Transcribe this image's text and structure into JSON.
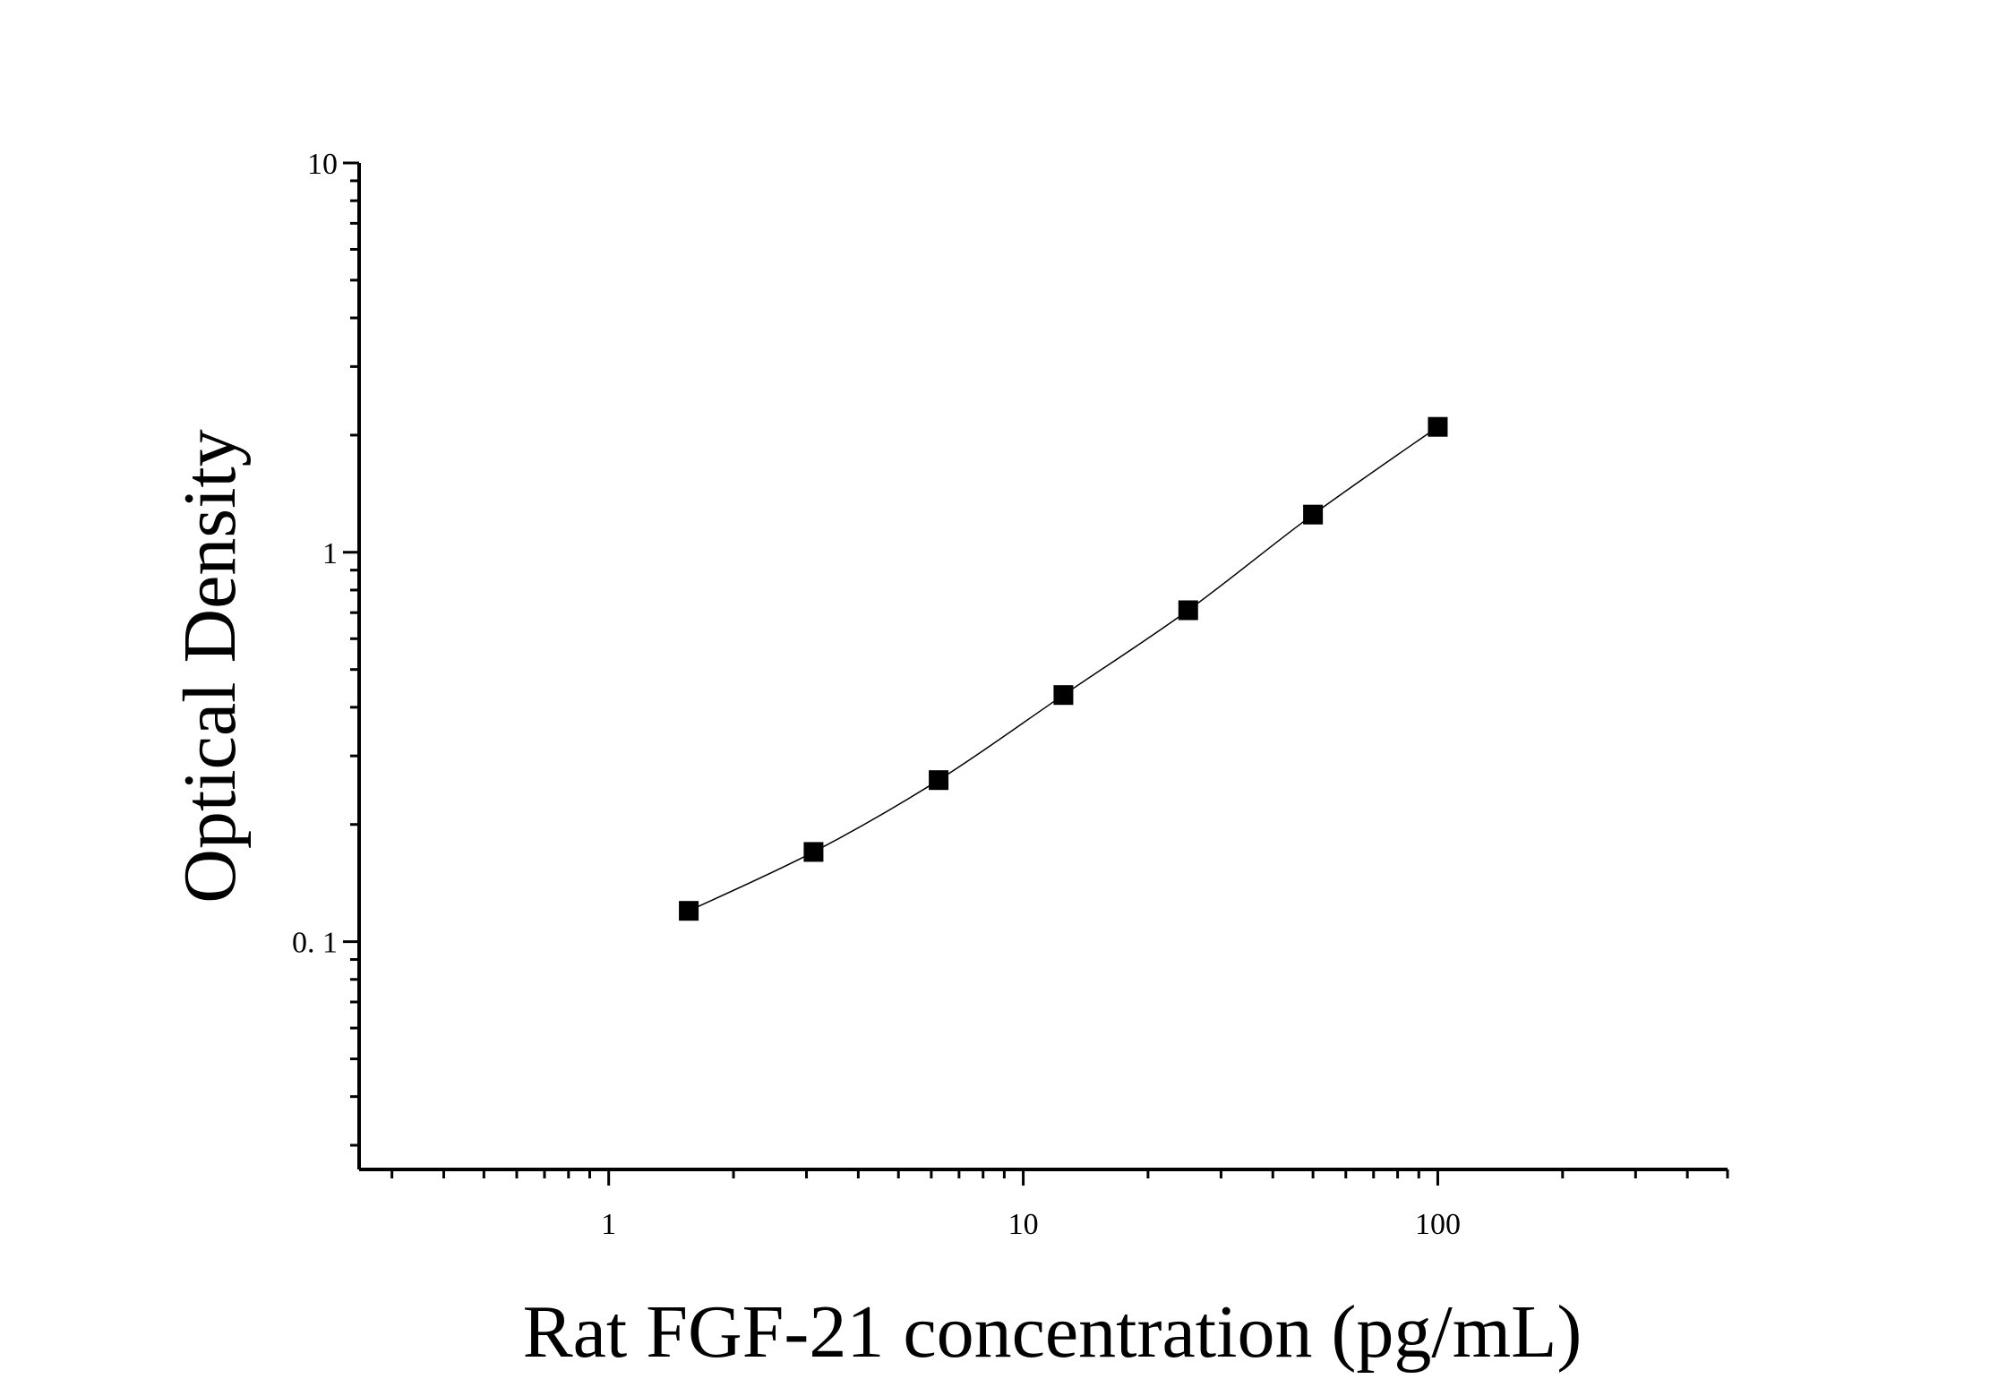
{
  "chart_data": {
    "type": "scatter",
    "title": "",
    "xlabel": "Rat FGF-21 concentration (pg/mL)",
    "ylabel": "Optical Density",
    "xscale": "log",
    "yscale": "log",
    "xlim": [
      0.25,
      500
    ],
    "ylim": [
      0.026,
      10
    ],
    "x_tick_labels": [
      {
        "value": 1,
        "label": "1"
      },
      {
        "value": 10,
        "label": "10"
      },
      {
        "value": 100,
        "label": "100"
      }
    ],
    "y_tick_labels": [
      {
        "value": 0.1,
        "label": "0. 1"
      },
      {
        "value": 1,
        "label": "1"
      },
      {
        "value": 10,
        "label": "10"
      }
    ],
    "grid": false,
    "legend": "none",
    "fit_curve": true,
    "marker": "square",
    "series": [
      {
        "points": [
          {
            "x": 1.56,
            "y": 0.12
          },
          {
            "x": 3.12,
            "y": 0.17
          },
          {
            "x": 6.25,
            "y": 0.26
          },
          {
            "x": 12.5,
            "y": 0.43
          },
          {
            "x": 25,
            "y": 0.71
          },
          {
            "x": 50,
            "y": 1.25
          },
          {
            "x": 100,
            "y": 2.1
          }
        ]
      }
    ],
    "colors": {
      "marker": "#000000",
      "line": "#000000",
      "axis": "#000000"
    }
  }
}
